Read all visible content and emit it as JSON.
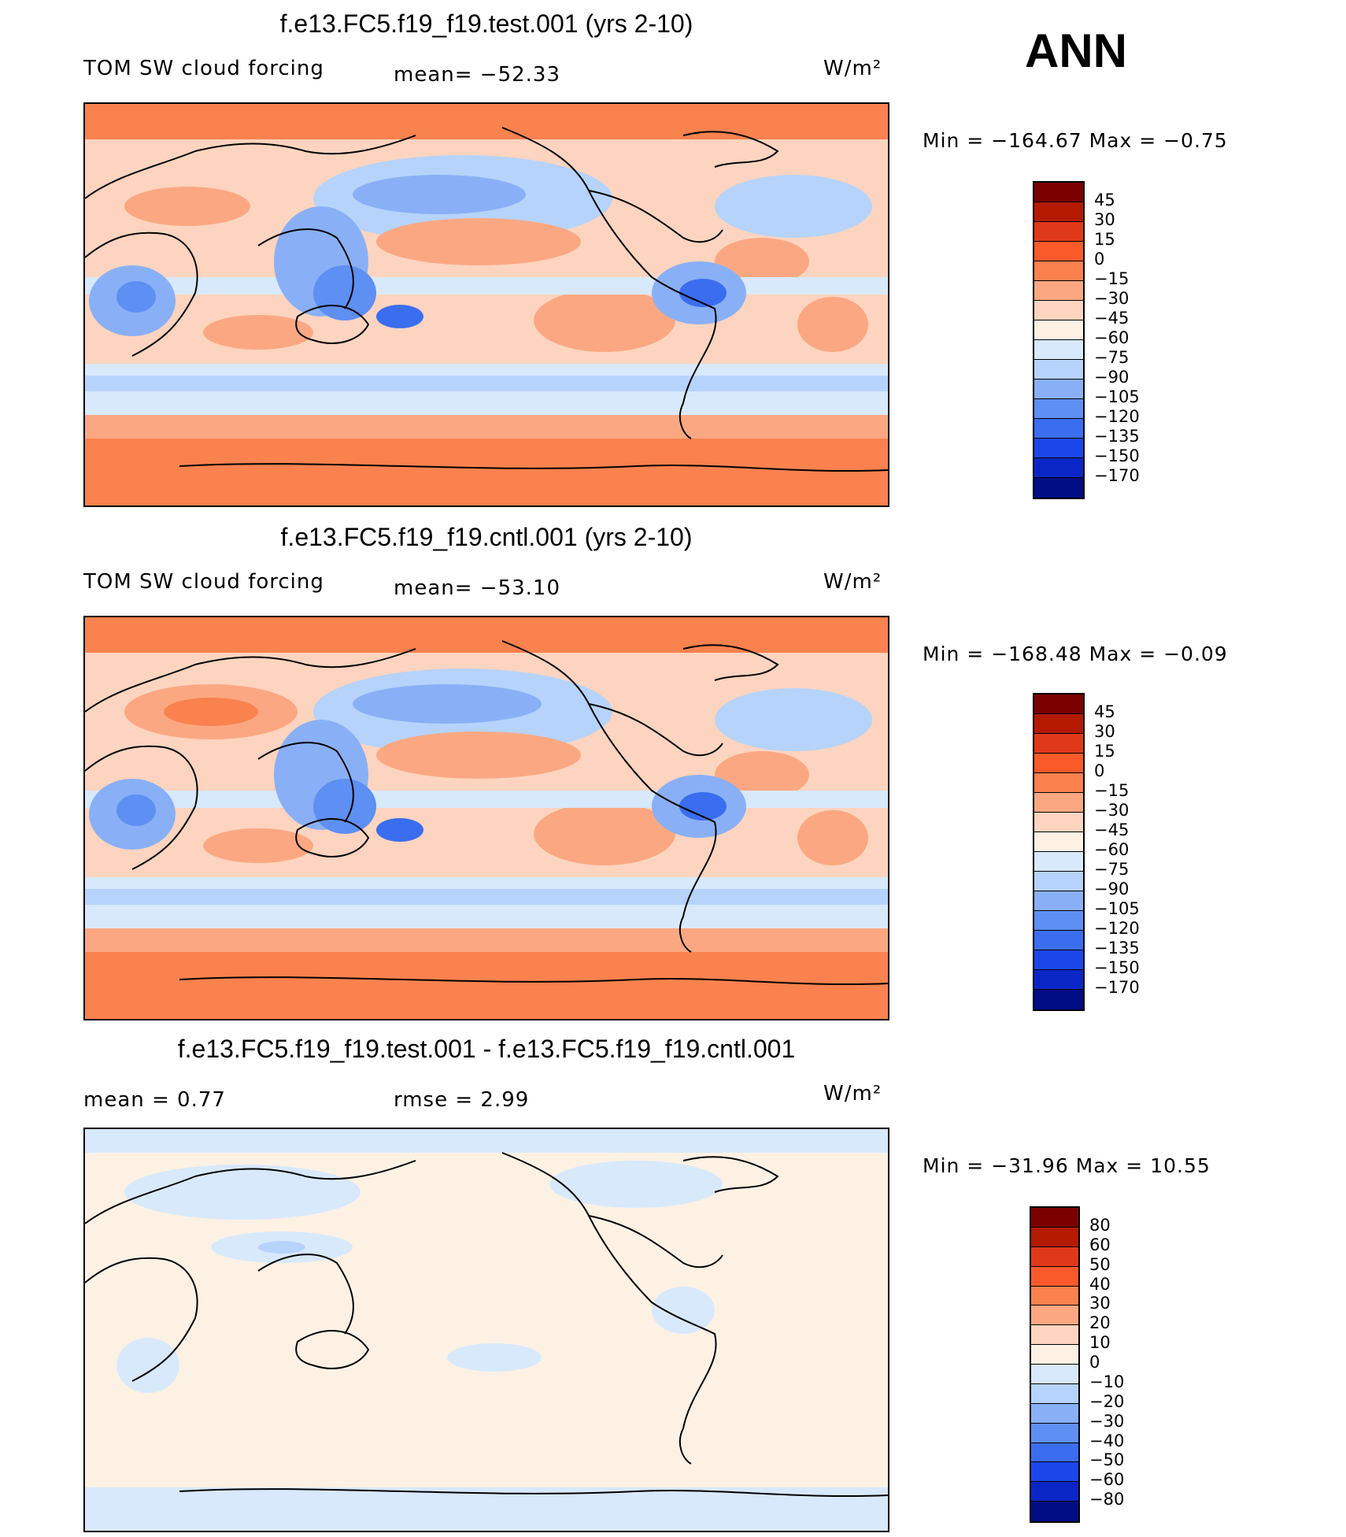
{
  "season": "ANN",
  "panels": [
    {
      "title": "f.e13.FC5.f19_f19.test.001 (yrs 2-10)",
      "left_label": "TOM SW cloud forcing",
      "mid_label": "mean= −52.33",
      "units": "W/m²",
      "minmax": "Min = −164.67 Max =  −0.75",
      "colorbar_ticks": [
        "45",
        "30",
        "15",
        "0",
        "−15",
        "−30",
        "−45",
        "−60",
        "−75",
        "−90",
        "−105",
        "−120",
        "−135",
        "−150",
        "−170"
      ],
      "colorbar_colors": [
        "#7a0000",
        "#b31a00",
        "#e0391a",
        "#fa5a2a",
        "#f9824f",
        "#fba882",
        "#fdd4bf",
        "#fdf1e4",
        "#d8e9fc",
        "#b6d3fb",
        "#89b0f6",
        "#5e8ff2",
        "#3b6df0",
        "#1b47ea",
        "#0a27c6",
        "#000d84"
      ]
    },
    {
      "title": "f.e13.FC5.f19_f19.cntl.001 (yrs 2-10)",
      "left_label": "TOM SW cloud forcing",
      "mid_label": "mean= −53.10",
      "units": "W/m²",
      "minmax": "Min = −168.48 Max =  −0.09",
      "colorbar_ticks": [
        "45",
        "30",
        "15",
        "0",
        "−15",
        "−30",
        "−45",
        "−60",
        "−75",
        "−90",
        "−105",
        "−120",
        "−135",
        "−150",
        "−170"
      ],
      "colorbar_colors": [
        "#7a0000",
        "#b31a00",
        "#e0391a",
        "#fa5a2a",
        "#f9824f",
        "#fba882",
        "#fdd4bf",
        "#fdf1e4",
        "#d8e9fc",
        "#b6d3fb",
        "#89b0f6",
        "#5e8ff2",
        "#3b6df0",
        "#1b47ea",
        "#0a27c6",
        "#000d84"
      ]
    },
    {
      "title": "f.e13.FC5.f19_f19.test.001 - f.e13.FC5.f19_f19.cntl.001",
      "left_label": "mean =    0.77",
      "mid_label": "rmse =    2.99",
      "units": "W/m²",
      "minmax": "Min = −31.96 Max =  10.55",
      "colorbar_ticks": [
        "80",
        "60",
        "50",
        "40",
        "30",
        "20",
        "10",
        "0",
        "−10",
        "−20",
        "−30",
        "−40",
        "−50",
        "−60",
        "−80"
      ],
      "colorbar_colors": [
        "#7a0000",
        "#b31a00",
        "#e0391a",
        "#fa5a2a",
        "#f9824f",
        "#fba882",
        "#fdd4bf",
        "#fdf1e4",
        "#d8e9fc",
        "#b6d3fb",
        "#89b0f6",
        "#5e8ff2",
        "#3b6df0",
        "#1b47ea",
        "#0a27c6",
        "#000d84"
      ]
    }
  ]
}
